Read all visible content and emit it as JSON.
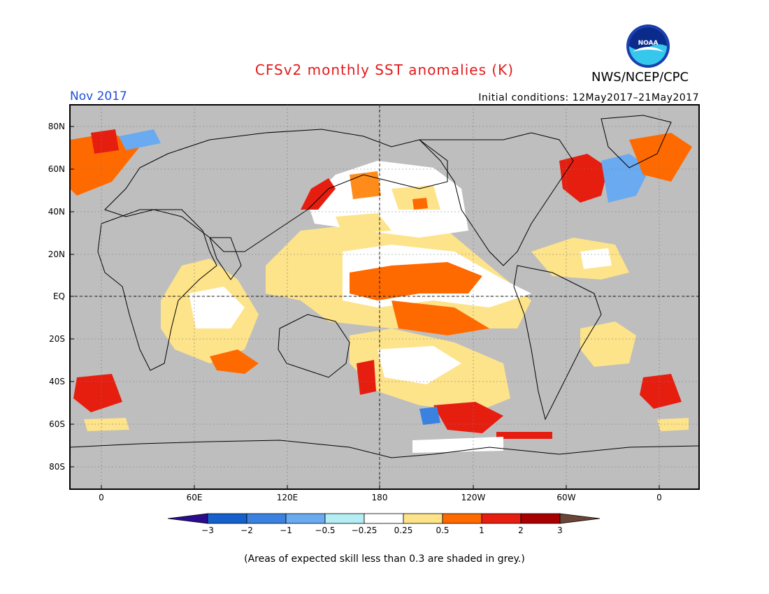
{
  "header": {
    "title": "CFSv2 monthly SST anomalies (K)",
    "agency": "NWS/NCEP/CPC",
    "logo_text": "NOAA",
    "month": "Nov 2017",
    "initial_conditions": "Initial conditions: 12May2017–21May2017"
  },
  "map": {
    "lat_labels": [
      "80N",
      "60N",
      "40N",
      "20N",
      "EQ",
      "20S",
      "40S",
      "60S",
      "80S"
    ],
    "lon_labels": [
      "0",
      "60E",
      "120E",
      "180",
      "120W",
      "60W",
      "0"
    ],
    "land_color": "#bebebe",
    "skill_mask_color": "#bebebe"
  },
  "colorbar": {
    "tick_labels": [
      "−3",
      "−2",
      "−1",
      "−0.5",
      "−0.25",
      "0.25",
      "0.5",
      "1",
      "2",
      "3"
    ],
    "colors": [
      "#2a0d8f",
      "#1660cc",
      "#3b82e0",
      "#6aaaf0",
      "#b4eef4",
      "#ffffff",
      "#fde38a",
      "#ff6a00",
      "#e61e10",
      "#a80000",
      "#6b4436"
    ]
  },
  "footer": {
    "note": "(Areas of expected skill less than 0.3 are shaded in grey.)"
  }
}
